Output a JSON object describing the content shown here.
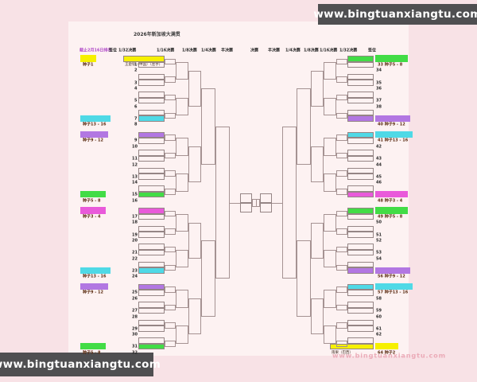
{
  "title": "2026年新加坡大满贯",
  "note": "截止2月16日排名",
  "watermark": {
    "text": "www.bingtuanxiangtu.com"
  },
  "faint_watermark": "www.bingtuanxiangtu.com",
  "round_labels": [
    "签位",
    "1/32决赛",
    "1/16决赛",
    "1/8决赛",
    "1/4决赛",
    "半决赛",
    "决赛",
    "半决赛",
    "1/4决赛",
    "1/8决赛",
    "1/16决赛",
    "1/32决赛",
    "签位"
  ],
  "colors": {
    "yellow": "#f6f000",
    "cyan": "#4fd9e6",
    "purple": "#b277e2",
    "green": "#42dc46",
    "magenta": "#e95ada",
    "line": "#a59292",
    "chip_text": "#5b2c12",
    "number": "#262626"
  },
  "bracket": {
    "type": "tournament-bracket",
    "rounds_per_side": 5,
    "left_slot_range": [
      1,
      32
    ],
    "right_slot_range": [
      33,
      64
    ],
    "left_entries": [
      {
        "slot": 1,
        "seed_label": "种子1",
        "color": "yellow",
        "player": "王楚钦（中国）（左手）"
      },
      {
        "slot": 8,
        "seed_label": "种子13 - 16",
        "color": "cyan"
      },
      {
        "slot": 9,
        "seed_label": "种子9 - 12",
        "color": "purple"
      },
      {
        "slot": 16,
        "seed_label": "种子5 - 8",
        "color": "green"
      },
      {
        "slot": 17,
        "seed_label": "种子3 - 4",
        "color": "magenta"
      },
      {
        "slot": 24,
        "seed_label": "种子13 - 16",
        "color": "cyan"
      },
      {
        "slot": 25,
        "seed_label": "种子9 - 12",
        "color": "purple"
      },
      {
        "slot": 32,
        "seed_label": "种子5 - 8",
        "color": "green"
      }
    ],
    "right_entries": [
      {
        "slot": 33,
        "seed_label": "种子5 - 8",
        "color": "green"
      },
      {
        "slot": 40,
        "seed_label": "种子9 - 12",
        "color": "purple"
      },
      {
        "slot": 41,
        "seed_label": "种子13 - 16",
        "color": "cyan"
      },
      {
        "slot": 48,
        "seed_label": "种子3 - 4",
        "color": "magenta"
      },
      {
        "slot": 49,
        "seed_label": "种子5 - 8",
        "color": "green"
      },
      {
        "slot": 56,
        "seed_label": "种子9 - 12",
        "color": "purple"
      },
      {
        "slot": 57,
        "seed_label": "种子13 - 16",
        "color": "cyan"
      },
      {
        "slot": 64,
        "seed_label": "种子2",
        "color": "yellow",
        "player": "雨果（巴西）"
      }
    ]
  }
}
